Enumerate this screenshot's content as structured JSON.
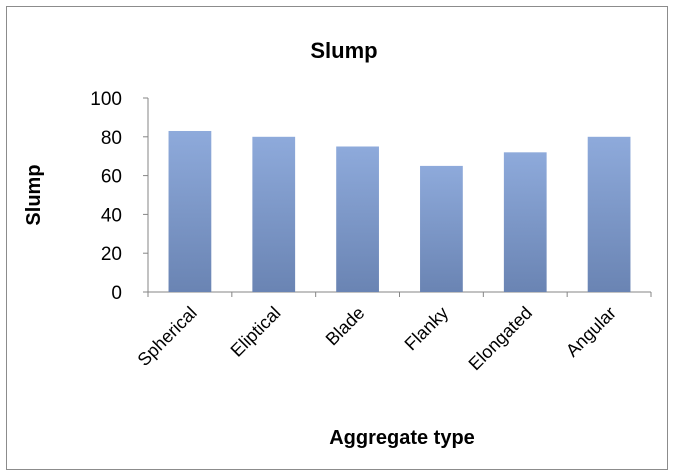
{
  "chart_data": {
    "type": "bar",
    "title": "Slump",
    "xlabel": "Aggregate type",
    "ylabel": "Slump",
    "categories": [
      "Spherical",
      "Eliptical",
      "Blade",
      "Flanky",
      "Elongated",
      "Angular"
    ],
    "series": [
      {
        "values": [
          83,
          80,
          75,
          65,
          72,
          80
        ]
      }
    ],
    "ylim": [
      0,
      100
    ],
    "yticks": [
      0,
      20,
      40,
      60,
      80,
      100
    ],
    "grid": false,
    "legend": "none",
    "colors": {
      "bar_top": "#8eaadb",
      "bar_bottom": "#6a84b3",
      "axis": "#868686"
    }
  }
}
